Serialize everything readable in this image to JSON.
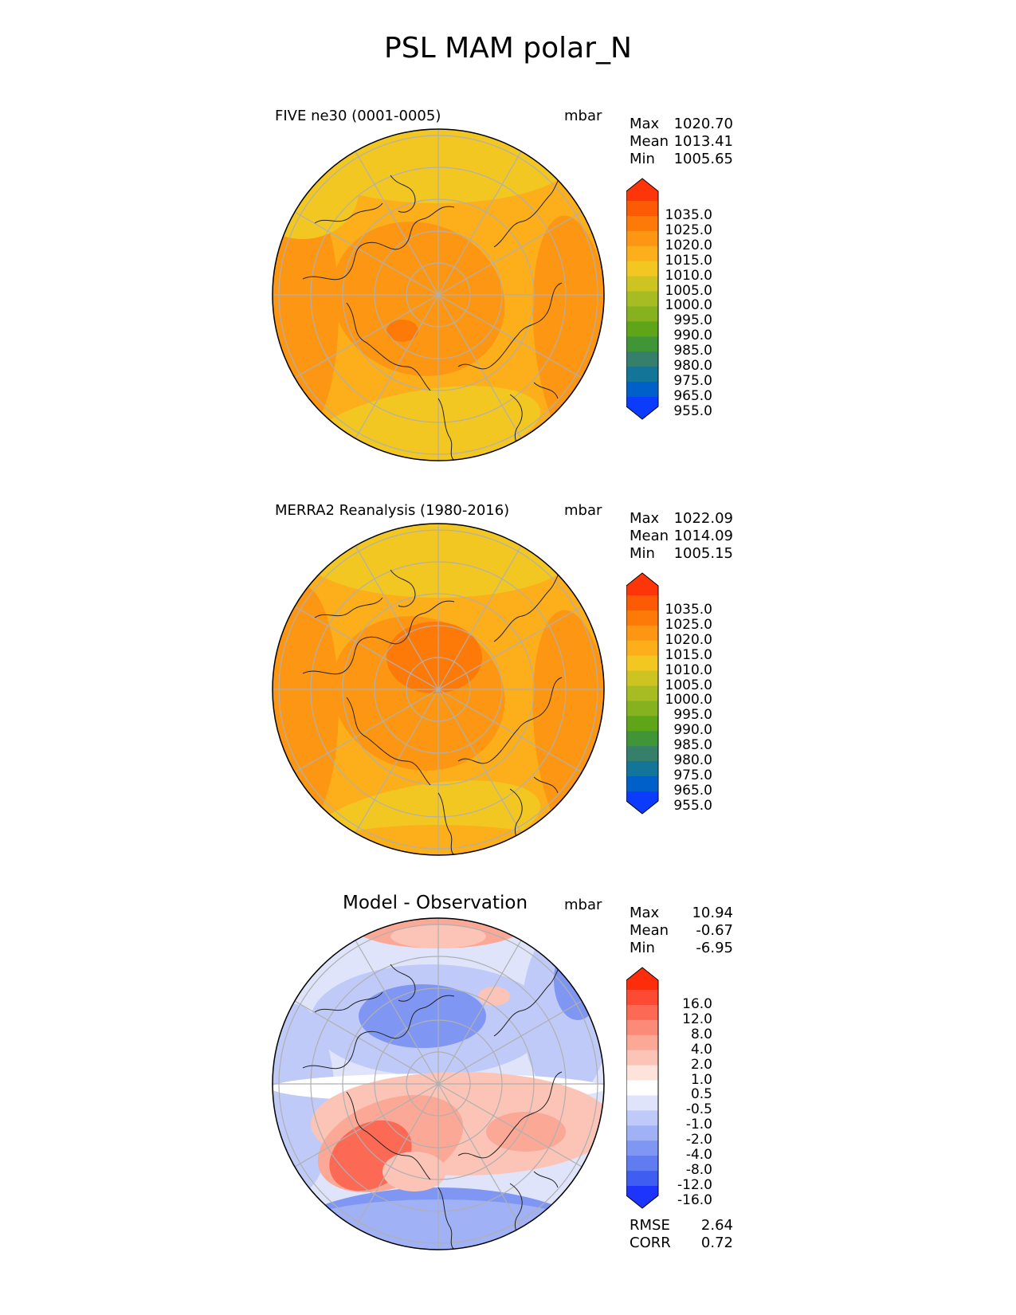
{
  "title": "PSL MAM polar_N",
  "chart_data": [
    {
      "type": "heatmap",
      "projection": "north-polar-stereographic",
      "title": "FIVE ne30 (0001-0005)",
      "units": "mbar",
      "stats": {
        "max_label": "Max",
        "max": "1020.70",
        "mean_label": "Mean",
        "mean": "1013.41",
        "min_label": "Min",
        "min": "1005.65"
      },
      "colorbar": {
        "extend": "both",
        "tick_labels": [
          "1035.0",
          "1025.0",
          "1020.0",
          "1015.0",
          "1010.0",
          "1005.0",
          "1000.0",
          "995.0",
          "990.0",
          "985.0",
          "980.0",
          "975.0",
          "965.0",
          "955.0"
        ],
        "colors": [
          "#fd3508",
          "#fd5a06",
          "#fd7a09",
          "#fd9612",
          "#fcae1b",
          "#f3c722",
          "#cdc321",
          "#a7bb22",
          "#85b21e",
          "#5ea617",
          "#409537",
          "#357f6b",
          "#137598",
          "#0060c9",
          "#0b3cfd"
        ]
      }
    },
    {
      "type": "heatmap",
      "projection": "north-polar-stereographic",
      "title": "MERRA2 Reanalysis (1980-2016)",
      "units": "mbar",
      "stats": {
        "max_label": "Max",
        "max": "1022.09",
        "mean_label": "Mean",
        "mean": "1014.09",
        "min_label": "Min",
        "min": "1005.15"
      },
      "colorbar": {
        "extend": "both",
        "tick_labels": [
          "1035.0",
          "1025.0",
          "1020.0",
          "1015.0",
          "1010.0",
          "1005.0",
          "1000.0",
          "995.0",
          "990.0",
          "985.0",
          "980.0",
          "975.0",
          "965.0",
          "955.0"
        ],
        "colors": [
          "#fd3508",
          "#fd5a06",
          "#fd7a09",
          "#fd9612",
          "#fcae1b",
          "#f3c722",
          "#cdc321",
          "#a7bb22",
          "#85b21e",
          "#5ea617",
          "#409537",
          "#357f6b",
          "#137598",
          "#0060c9",
          "#0b3cfd"
        ]
      }
    },
    {
      "type": "heatmap",
      "projection": "north-polar-stereographic",
      "title": "Model - Observation",
      "units": "mbar",
      "stats": {
        "max_label": "Max",
        "max": "10.94",
        "mean_label": "Mean",
        "mean": "-0.67",
        "min_label": "Min",
        "min": "-6.95"
      },
      "colorbar": {
        "extend": "both",
        "tick_labels": [
          "16.0",
          "12.0",
          "8.0",
          "4.0",
          "2.0",
          "1.0",
          "0.5",
          "-0.5",
          "-1.0",
          "-2.0",
          "-4.0",
          "-8.0",
          "-12.0",
          "-16.0"
        ],
        "colors": [
          "#fd2d0c",
          "#fd4a32",
          "#fc6a55",
          "#fb8a78",
          "#fba897",
          "#fbc4b6",
          "#fde3da",
          "#ffffff",
          "#dfe4fb",
          "#bfcaf8",
          "#a0b1f6",
          "#8096f3",
          "#607cf0",
          "#3f5df1",
          "#1d34fd"
        ]
      },
      "metrics": {
        "rmse_label": "RMSE",
        "rmse": "2.64",
        "corr_label": "CORR",
        "corr": "0.72"
      }
    }
  ]
}
